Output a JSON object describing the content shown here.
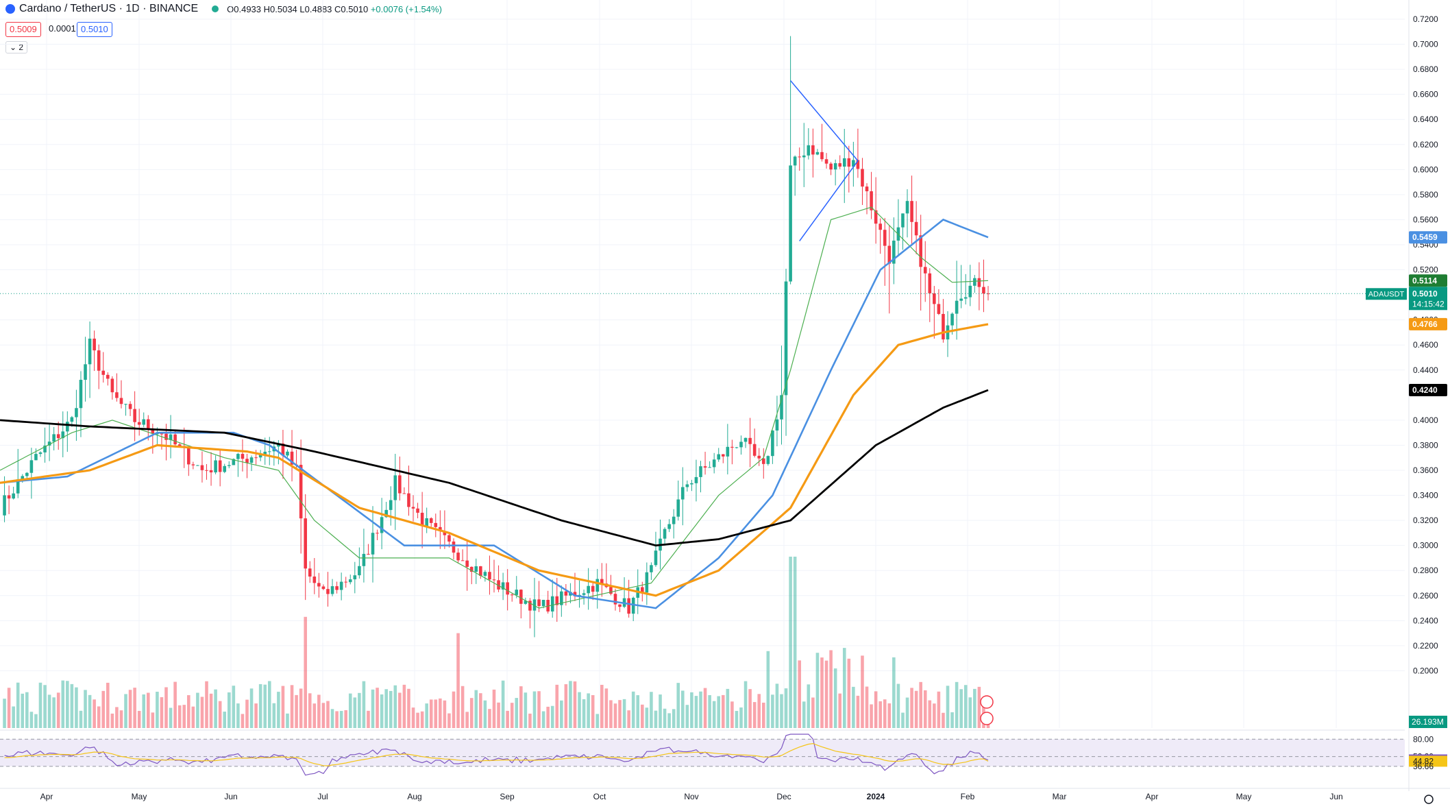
{
  "header": {
    "symbol": "Cardano / TetherUS · 1D · BINANCE",
    "open": "O0.4933",
    "high": "H0.5034",
    "low": "L0.4883",
    "close": "C0.5010",
    "change": "+0.0076 (+1.54%)",
    "sell_price": "0.5009",
    "spread": "0.0001",
    "buy_price": "0.5010",
    "indicator_count": "2"
  },
  "colors": {
    "up": "#22ab94",
    "down": "#f23645",
    "ma20": "#4caf50",
    "ma50": "#4a90e2",
    "ma100": "#f59a14",
    "ma200": "#000000",
    "rsi": "#7e57c2",
    "rsi_ma": "#f5c518",
    "last": "#089981"
  },
  "chart_data": {
    "type": "candlestick",
    "symbol": "ADAUSDT",
    "ylim": [
      0.18,
      0.72
    ],
    "y_ticks": [
      "0.7200",
      "0.7000",
      "0.6800",
      "0.6600",
      "0.6400",
      "0.6200",
      "0.6000",
      "0.5800",
      "0.5600",
      "0.5400",
      "0.5200",
      "0.4800",
      "0.4600",
      "0.4400",
      "0.4000",
      "0.3800",
      "0.3600",
      "0.3400",
      "0.3200",
      "0.3000",
      "0.2800",
      "0.2600",
      "0.2400",
      "0.2200",
      "0.2000"
    ],
    "x_ticks": [
      "Apr",
      "May",
      "Jun",
      "Jul",
      "Aug",
      "Sep",
      "Oct",
      "Nov",
      "Dec",
      "2024",
      "Jan",
      "Feb",
      "Mar",
      "Apr",
      "May",
      "Jun"
    ],
    "last_price": {
      "label": "ADAUSDT",
      "value": "0.5010",
      "countdown": "14:15:42"
    },
    "price_labels": [
      {
        "value": "0.5459",
        "color": "#4a90e2"
      },
      {
        "value": "0.5114",
        "color": "#1e7d32"
      },
      {
        "value": "0.4766",
        "color": "#f59a14"
      },
      {
        "value": "0.4240",
        "color": "#000000"
      }
    ],
    "volume_label": "26.193M",
    "close_anchors": [
      [
        0,
        0.33
      ],
      [
        8,
        0.37
      ],
      [
        16,
        0.4
      ],
      [
        20,
        0.46
      ],
      [
        25,
        0.42
      ],
      [
        30,
        0.4
      ],
      [
        36,
        0.39
      ],
      [
        45,
        0.36
      ],
      [
        55,
        0.37
      ],
      [
        62,
        0.38
      ],
      [
        66,
        0.36
      ],
      [
        68,
        0.28
      ],
      [
        72,
        0.26
      ],
      [
        80,
        0.28
      ],
      [
        88,
        0.35
      ],
      [
        94,
        0.32
      ],
      [
        100,
        0.3
      ],
      [
        110,
        0.27
      ],
      [
        120,
        0.25
      ],
      [
        133,
        0.27
      ],
      [
        140,
        0.25
      ],
      [
        145,
        0.28
      ],
      [
        148,
        0.31
      ],
      [
        153,
        0.35
      ],
      [
        160,
        0.37
      ],
      [
        165,
        0.385
      ],
      [
        170,
        0.36
      ],
      [
        174,
        0.42
      ],
      [
        176,
        0.6
      ],
      [
        180,
        0.62
      ],
      [
        185,
        0.6
      ],
      [
        190,
        0.61
      ],
      [
        194,
        0.57
      ],
      [
        198,
        0.53
      ],
      [
        202,
        0.57
      ],
      [
        207,
        0.5
      ],
      [
        210,
        0.47
      ],
      [
        213,
        0.5
      ],
      [
        218,
        0.51
      ],
      [
        220,
        0.501
      ]
    ],
    "ma20": [
      [
        0,
        0.36
      ],
      [
        16,
        0.39
      ],
      [
        25,
        0.4
      ],
      [
        50,
        0.37
      ],
      [
        62,
        0.36
      ],
      [
        70,
        0.32
      ],
      [
        80,
        0.29
      ],
      [
        100,
        0.29
      ],
      [
        120,
        0.25
      ],
      [
        145,
        0.27
      ],
      [
        160,
        0.34
      ],
      [
        170,
        0.37
      ],
      [
        176,
        0.44
      ],
      [
        185,
        0.56
      ],
      [
        194,
        0.57
      ],
      [
        205,
        0.53
      ],
      [
        212,
        0.51
      ],
      [
        220,
        0.5114
      ]
    ],
    "ma50": [
      [
        0,
        0.35
      ],
      [
        15,
        0.355
      ],
      [
        35,
        0.39
      ],
      [
        52,
        0.39
      ],
      [
        60,
        0.38
      ],
      [
        75,
        0.34
      ],
      [
        90,
        0.3
      ],
      [
        110,
        0.3
      ],
      [
        128,
        0.26
      ],
      [
        146,
        0.25
      ],
      [
        160,
        0.29
      ],
      [
        172,
        0.34
      ],
      [
        185,
        0.44
      ],
      [
        196,
        0.52
      ],
      [
        210,
        0.56
      ],
      [
        220,
        0.5459
      ]
    ],
    "ma100": [
      [
        0,
        0.35
      ],
      [
        20,
        0.36
      ],
      [
        35,
        0.38
      ],
      [
        55,
        0.375
      ],
      [
        62,
        0.37
      ],
      [
        80,
        0.33
      ],
      [
        100,
        0.31
      ],
      [
        120,
        0.28
      ],
      [
        146,
        0.26
      ],
      [
        160,
        0.28
      ],
      [
        176,
        0.33
      ],
      [
        190,
        0.42
      ],
      [
        200,
        0.46
      ],
      [
        210,
        0.47
      ],
      [
        220,
        0.4766
      ]
    ],
    "ma200": [
      [
        0,
        0.4
      ],
      [
        20,
        0.395
      ],
      [
        50,
        0.39
      ],
      [
        70,
        0.375
      ],
      [
        100,
        0.35
      ],
      [
        125,
        0.32
      ],
      [
        146,
        0.3
      ],
      [
        160,
        0.305
      ],
      [
        176,
        0.32
      ],
      [
        195,
        0.38
      ],
      [
        210,
        0.41
      ],
      [
        220,
        0.424
      ]
    ],
    "rsi": {
      "levels": [
        "80.00",
        "52.29",
        "46.94",
        "44.82",
        "36.66"
      ],
      "current": "46.94",
      "ma": "44.82"
    },
    "drawing": "triangle pattern",
    "grid": true
  }
}
